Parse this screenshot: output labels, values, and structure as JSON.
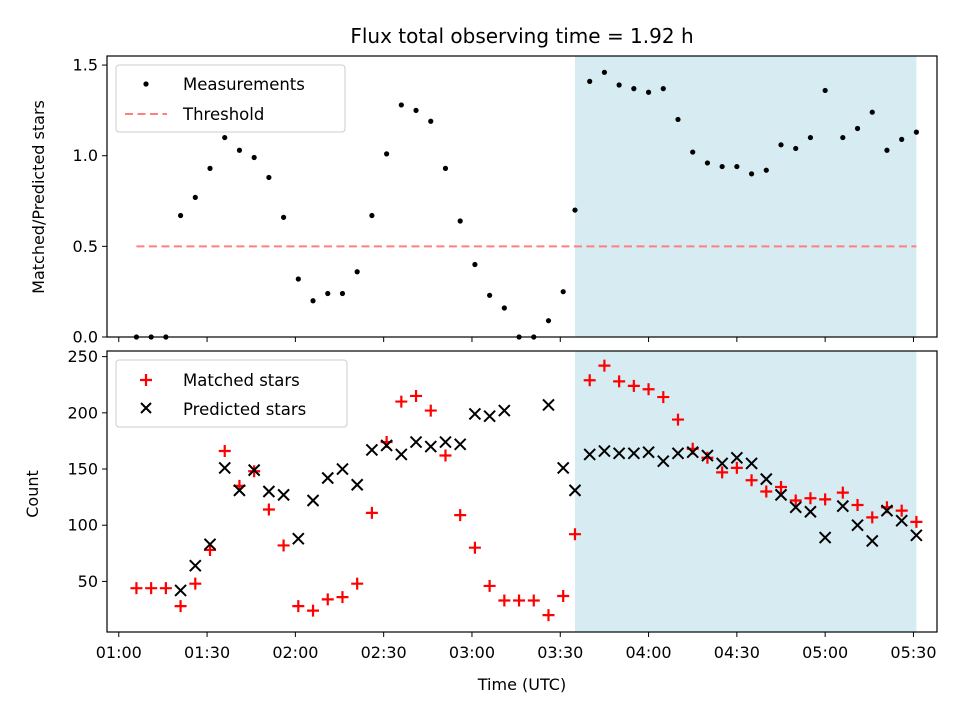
{
  "title": "Flux total observing time = 1.92 h",
  "xlabel": "Time (UTC)",
  "x_ticks": [
    "01:00",
    "01:30",
    "02:00",
    "02:30",
    "03:00",
    "03:30",
    "04:00",
    "04:30",
    "05:00",
    "05:30"
  ],
  "x_tick_minutes": [
    60,
    90,
    120,
    150,
    180,
    210,
    240,
    270,
    300,
    330
  ],
  "xlim": [
    56,
    338
  ],
  "colors": {
    "highlight": "#add8e6",
    "measurements": "#000000",
    "threshold": "#ff7f7f",
    "matched": "#ff0000",
    "predicted": "#000000"
  },
  "chart_data": [
    {
      "type": "scatter",
      "ylabel": "Matched/Predicted stars",
      "ylim": [
        0,
        1.55
      ],
      "y_ticks": [
        "0.0",
        "0.5",
        "1.0",
        "1.5"
      ],
      "y_tick_values": [
        0,
        0.5,
        1.0,
        1.5
      ],
      "legend_position": "top-left",
      "highlight_span": [
        "03:35",
        "05:31"
      ],
      "highlight_span_minutes": [
        215,
        331
      ],
      "threshold": {
        "name": "Threshold",
        "value": 0.5,
        "x_range": [
          "01:06",
          "05:31"
        ],
        "x_range_minutes": [
          66,
          331
        ]
      },
      "series": [
        {
          "name": "Measurements",
          "x": [
            "01:06",
            "01:11",
            "01:16",
            "01:21",
            "01:26",
            "01:31",
            "01:36",
            "01:41",
            "01:46",
            "01:51",
            "01:56",
            "02:01",
            "02:06",
            "02:11",
            "02:16",
            "02:21",
            "02:26",
            "02:31",
            "02:36",
            "02:41",
            "02:46",
            "02:51",
            "02:56",
            "03:01",
            "03:06",
            "03:11",
            "03:16",
            "03:21",
            "03:26",
            "03:31",
            "03:35",
            "03:40",
            "03:45",
            "03:50",
            "03:55",
            "04:00",
            "04:05",
            "04:10",
            "04:15",
            "04:20",
            "04:25",
            "04:30",
            "04:35",
            "04:40",
            "04:45",
            "04:50",
            "04:55",
            "05:00",
            "05:06",
            "05:11",
            "05:16",
            "05:21",
            "05:26",
            "05:31"
          ],
          "x_minutes": [
            66,
            71,
            76,
            81,
            86,
            91,
            96,
            101,
            106,
            111,
            116,
            121,
            126,
            131,
            136,
            141,
            146,
            151,
            156,
            161,
            166,
            171,
            176,
            181,
            186,
            191,
            196,
            201,
            206,
            211,
            215,
            220,
            225,
            230,
            235,
            240,
            245,
            250,
            255,
            260,
            265,
            270,
            275,
            280,
            285,
            290,
            295,
            300,
            306,
            311,
            316,
            321,
            326,
            331
          ],
          "y": [
            0.0,
            0.0,
            0.0,
            0.67,
            0.77,
            0.93,
            1.1,
            1.03,
            0.99,
            0.88,
            0.66,
            0.32,
            0.2,
            0.24,
            0.24,
            0.36,
            0.67,
            1.01,
            1.28,
            1.25,
            1.19,
            0.93,
            0.64,
            0.4,
            0.23,
            0.16,
            0.0,
            0.0,
            0.09,
            0.25,
            0.7,
            1.41,
            1.46,
            1.39,
            1.37,
            1.35,
            1.37,
            1.2,
            1.02,
            0.96,
            0.94,
            0.94,
            0.9,
            0.92,
            1.06,
            1.04,
            1.1,
            1.36,
            1.1,
            1.15,
            1.24,
            1.03,
            1.09,
            1.13
          ]
        }
      ]
    },
    {
      "type": "scatter",
      "ylabel": "Count",
      "ylim": [
        5,
        255
      ],
      "y_ticks": [
        "50",
        "100",
        "150",
        "200",
        "250"
      ],
      "y_tick_values": [
        50,
        100,
        150,
        200,
        250
      ],
      "legend_position": "top-left",
      "highlight_span": [
        "03:35",
        "05:31"
      ],
      "highlight_span_minutes": [
        215,
        331
      ],
      "series": [
        {
          "name": "Matched stars",
          "marker": "plus",
          "x": [
            "01:06",
            "01:11",
            "01:16",
            "01:21",
            "01:26",
            "01:31",
            "01:36",
            "01:41",
            "01:46",
            "01:51",
            "01:56",
            "02:01",
            "02:06",
            "02:11",
            "02:16",
            "02:21",
            "02:26",
            "02:31",
            "02:36",
            "02:41",
            "02:46",
            "02:51",
            "02:56",
            "03:01",
            "03:06",
            "03:11",
            "03:16",
            "03:21",
            "03:26",
            "03:31",
            "03:35",
            "03:40",
            "03:45",
            "03:50",
            "03:55",
            "04:00",
            "04:05",
            "04:10",
            "04:15",
            "04:20",
            "04:25",
            "04:30",
            "04:35",
            "04:40",
            "04:45",
            "04:50",
            "04:55",
            "05:00",
            "05:06",
            "05:11",
            "05:16",
            "05:21",
            "05:26",
            "05:31"
          ],
          "x_minutes": [
            66,
            71,
            76,
            81,
            86,
            91,
            96,
            101,
            106,
            111,
            116,
            121,
            126,
            131,
            136,
            141,
            146,
            151,
            156,
            161,
            166,
            171,
            176,
            181,
            186,
            191,
            196,
            201,
            206,
            211,
            215,
            220,
            225,
            230,
            235,
            240,
            245,
            250,
            255,
            260,
            265,
            270,
            275,
            280,
            285,
            290,
            295,
            300,
            306,
            311,
            316,
            321,
            326,
            331
          ],
          "y": [
            44,
            44,
            44,
            28,
            48,
            78,
            166,
            135,
            148,
            114,
            82,
            28,
            24,
            34,
            36,
            48,
            111,
            174,
            210,
            215,
            202,
            162,
            109,
            80,
            46,
            33,
            33,
            33,
            20,
            37,
            92,
            229,
            242,
            228,
            224,
            221,
            214,
            194,
            168,
            160,
            147,
            151,
            140,
            130,
            134,
            122,
            124,
            123,
            129,
            118,
            107,
            116,
            113,
            103
          ]
        },
        {
          "name": "Predicted stars",
          "marker": "cross",
          "x": [
            "01:21",
            "01:26",
            "01:31",
            "01:36",
            "01:41",
            "01:46",
            "01:51",
            "01:56",
            "02:01",
            "02:06",
            "02:11",
            "02:16",
            "02:21",
            "02:26",
            "02:31",
            "02:36",
            "02:41",
            "02:46",
            "02:51",
            "02:56",
            "03:01",
            "03:06",
            "03:11",
            "03:26",
            "03:31",
            "03:35",
            "03:40",
            "03:45",
            "03:50",
            "03:55",
            "04:00",
            "04:05",
            "04:10",
            "04:15",
            "04:20",
            "04:25",
            "04:30",
            "04:35",
            "04:40",
            "04:45",
            "04:50",
            "04:55",
            "05:00",
            "05:06",
            "05:11",
            "05:16",
            "05:21",
            "05:26",
            "05:31"
          ],
          "x_minutes": [
            81,
            86,
            91,
            96,
            101,
            106,
            111,
            116,
            121,
            126,
            131,
            136,
            141,
            146,
            151,
            156,
            161,
            166,
            171,
            176,
            181,
            186,
            191,
            206,
            211,
            215,
            220,
            225,
            230,
            235,
            240,
            245,
            250,
            255,
            260,
            265,
            270,
            275,
            280,
            285,
            290,
            295,
            300,
            306,
            311,
            316,
            321,
            326,
            331
          ],
          "y": [
            42,
            64,
            83,
            151,
            131,
            149,
            130,
            127,
            88,
            122,
            142,
            150,
            136,
            167,
            171,
            163,
            174,
            170,
            174,
            172,
            199,
            197,
            202,
            207,
            151,
            131,
            163,
            166,
            164,
            164,
            165,
            157,
            164,
            165,
            162,
            155,
            160,
            155,
            141,
            127,
            116,
            112,
            89,
            117,
            100,
            86,
            113,
            104,
            91
          ]
        }
      ]
    }
  ]
}
